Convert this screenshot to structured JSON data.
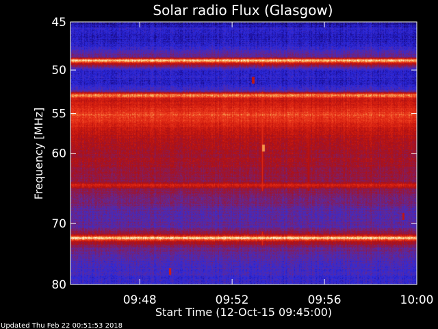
{
  "chart_data": {
    "type": "heatmap",
    "title": "Solar radio Flux (Glasgow)",
    "xlabel": "Start Time (12-Oct-15 09:45:00)",
    "ylabel": "Frequency [MHz]",
    "x_unit": "minutes after 09:45",
    "xlim": [
      0,
      15
    ],
    "ylim": [
      45,
      80
    ],
    "y_inverted": true,
    "y_scale": "log",
    "x_ticks": [
      {
        "value": 3,
        "label": "09:48"
      },
      {
        "value": 7,
        "label": "09:52"
      },
      {
        "value": 11,
        "label": "09:56"
      },
      {
        "value": 15,
        "label": "10:00"
      }
    ],
    "y_ticks": [
      {
        "value": 45,
        "label": "45"
      },
      {
        "value": 50,
        "label": "50"
      },
      {
        "value": 55,
        "label": "55"
      },
      {
        "value": 60,
        "label": "60"
      },
      {
        "value": 70,
        "label": "70"
      },
      {
        "value": 80,
        "label": "80"
      }
    ],
    "colormap": [
      "#000000",
      "#1a0a8a",
      "#2a2ae0",
      "#5a2aa0",
      "#8a1a50",
      "#b01010",
      "#d82010",
      "#f04020",
      "#f8c060",
      "#ffffff"
    ],
    "intensity_profile": [
      {
        "freq": 45.0,
        "level": 0.1
      },
      {
        "freq": 45.6,
        "level": 0.22
      },
      {
        "freq": 46.8,
        "level": 0.18
      },
      {
        "freq": 47.8,
        "level": 0.26
      },
      {
        "freq": 48.6,
        "level": 0.4
      },
      {
        "freq": 48.9,
        "level": 0.97
      },
      {
        "freq": 49.3,
        "level": 0.55
      },
      {
        "freq": 50.0,
        "level": 0.22
      },
      {
        "freq": 51.5,
        "level": 0.2
      },
      {
        "freq": 52.3,
        "level": 0.3
      },
      {
        "freq": 52.8,
        "level": 0.88
      },
      {
        "freq": 53.2,
        "level": 0.62
      },
      {
        "freq": 54.2,
        "level": 0.66
      },
      {
        "freq": 55.0,
        "level": 0.76
      },
      {
        "freq": 56.0,
        "level": 0.7
      },
      {
        "freq": 57.5,
        "level": 0.58
      },
      {
        "freq": 60.0,
        "level": 0.52
      },
      {
        "freq": 62.0,
        "level": 0.5
      },
      {
        "freq": 63.8,
        "level": 0.46
      },
      {
        "freq": 64.3,
        "level": 0.68
      },
      {
        "freq": 64.9,
        "level": 0.46
      },
      {
        "freq": 66.5,
        "level": 0.4
      },
      {
        "freq": 68.5,
        "level": 0.32
      },
      {
        "freq": 70.5,
        "level": 0.34
      },
      {
        "freq": 71.6,
        "level": 0.5
      },
      {
        "freq": 72.2,
        "level": 0.95
      },
      {
        "freq": 72.8,
        "level": 0.55
      },
      {
        "freq": 73.8,
        "level": 0.38
      },
      {
        "freq": 76.0,
        "level": 0.3
      },
      {
        "freq": 78.5,
        "level": 0.26
      },
      {
        "freq": 80.0,
        "level": 0.24
      }
    ],
    "time_features": [
      {
        "time": 8.3,
        "level": 0.7
      },
      {
        "time": 10.3,
        "level": 0.6
      }
    ],
    "bursts": [
      {
        "time": 8.35,
        "freq": 59.3,
        "level": 0.85
      },
      {
        "time": 7.9,
        "freq": 51.1,
        "level": 0.6
      },
      {
        "time": 4.3,
        "freq": 77.7,
        "level": 0.65
      },
      {
        "time": 14.4,
        "freq": 68.9,
        "level": 0.6
      }
    ]
  },
  "footer": {
    "updated": "Updated Thu Feb 22 00:51:53 2018"
  },
  "colors": {
    "background": "#000000",
    "text": "#ffffff"
  }
}
